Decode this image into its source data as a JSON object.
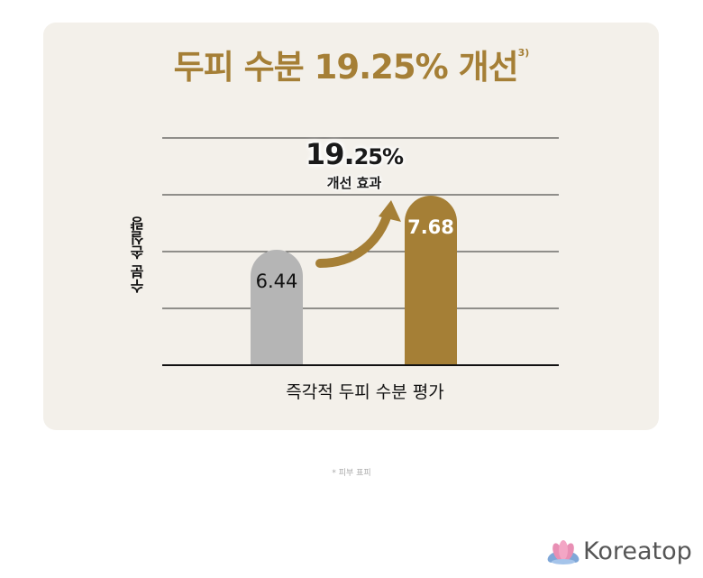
{
  "title": {
    "text": "두피 수분 19.25% 개선",
    "superscript": "3)"
  },
  "callout": {
    "pct_main": "19.",
    "pct_rest": "25%",
    "label": "개선 효과"
  },
  "footnote": "* 피부 표피",
  "brand": {
    "name": "Koreatop"
  },
  "colors": {
    "accent": "#a57f36",
    "bar_before": "#b5b5b5",
    "bar_after": "#a57f36",
    "card_bg": "#f3f0ea"
  },
  "chart_data": {
    "type": "bar",
    "categories": [
      "",
      ""
    ],
    "values": [
      6.44,
      7.68
    ],
    "value_labels": [
      "6.44",
      "7.68"
    ],
    "bar_colors": [
      "#b5b5b5",
      "#a57f36"
    ],
    "xlabel": "즉각적 두피 수분 평가",
    "ylabel": "수분 손실량",
    "grid": true,
    "annotation": "19.25% 개선 효과"
  }
}
